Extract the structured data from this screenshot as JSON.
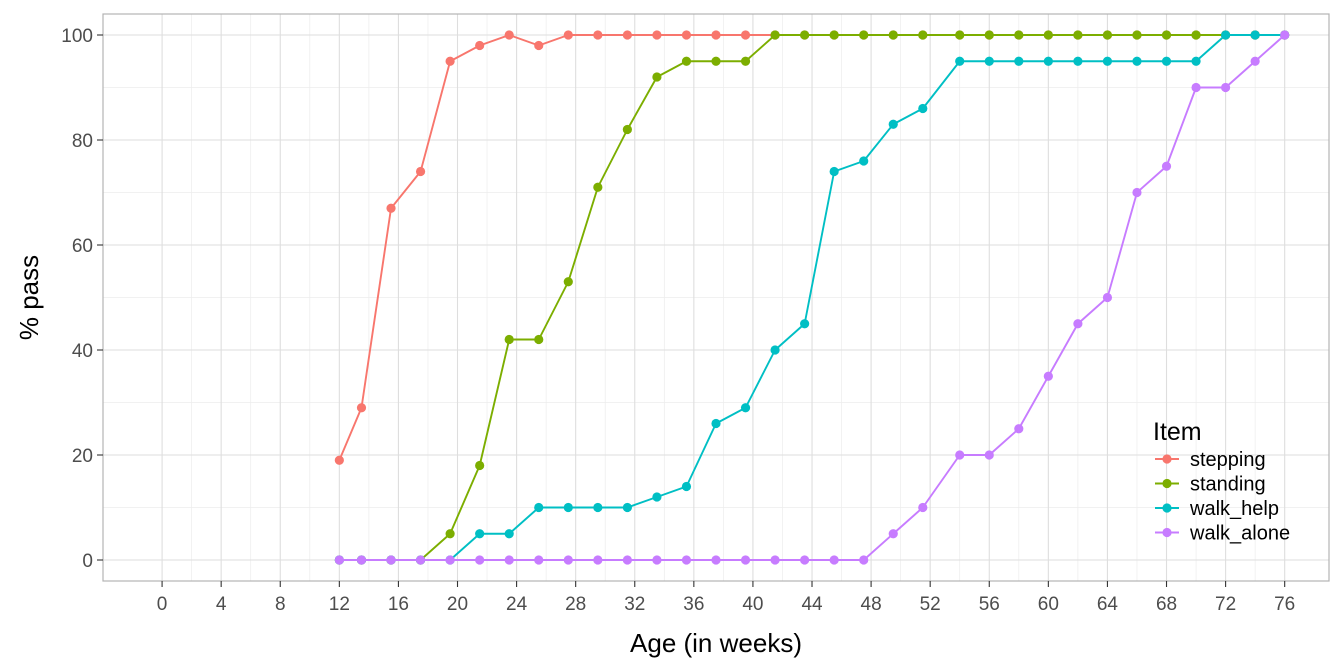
{
  "chart_data": {
    "type": "line",
    "xlabel": "Age (in weeks)",
    "ylabel": "% pass",
    "xlim": [
      -4,
      79
    ],
    "ylim": [
      -4,
      104
    ],
    "x_ticks": [
      0,
      4,
      8,
      12,
      16,
      20,
      24,
      28,
      32,
      36,
      40,
      44,
      48,
      52,
      56,
      60,
      64,
      68,
      72,
      76
    ],
    "y_ticks": [
      0,
      20,
      40,
      60,
      80,
      100
    ],
    "grid": true,
    "legend_title": "Item",
    "legend_position": "bottom-right",
    "series": [
      {
        "name": "stepping",
        "color": "#F8766D",
        "points": [
          [
            12,
            19
          ],
          [
            13.5,
            29
          ],
          [
            15.5,
            67
          ],
          [
            17.5,
            74
          ],
          [
            19.5,
            95
          ],
          [
            21.5,
            98
          ],
          [
            23.5,
            100
          ],
          [
            25.5,
            98
          ],
          [
            27.5,
            100
          ],
          [
            29.5,
            100
          ],
          [
            31.5,
            100
          ],
          [
            33.5,
            100
          ],
          [
            35.5,
            100
          ],
          [
            37.5,
            100
          ],
          [
            39.5,
            100
          ],
          [
            41.5,
            100
          ],
          [
            43.5,
            100
          ],
          [
            45.5,
            100
          ],
          [
            47.5,
            100
          ],
          [
            49.5,
            100
          ],
          [
            51.5,
            100
          ],
          [
            54,
            100
          ],
          [
            56,
            100
          ],
          [
            58,
            100
          ],
          [
            60,
            100
          ],
          [
            62,
            100
          ],
          [
            64,
            100
          ],
          [
            66,
            100
          ],
          [
            68,
            100
          ],
          [
            70,
            100
          ],
          [
            72,
            100
          ],
          [
            74,
            100
          ],
          [
            76,
            100
          ]
        ]
      },
      {
        "name": "standing",
        "color": "#7CAE00",
        "points": [
          [
            12,
            0
          ],
          [
            13.5,
            0
          ],
          [
            15.5,
            0
          ],
          [
            17.5,
            0
          ],
          [
            19.5,
            5
          ],
          [
            21.5,
            18
          ],
          [
            23.5,
            42
          ],
          [
            25.5,
            42
          ],
          [
            27.5,
            53
          ],
          [
            29.5,
            71
          ],
          [
            31.5,
            82
          ],
          [
            33.5,
            92
          ],
          [
            35.5,
            95
          ],
          [
            37.5,
            95
          ],
          [
            39.5,
            95
          ],
          [
            41.5,
            100
          ],
          [
            43.5,
            100
          ],
          [
            45.5,
            100
          ],
          [
            47.5,
            100
          ],
          [
            49.5,
            100
          ],
          [
            51.5,
            100
          ],
          [
            54,
            100
          ],
          [
            56,
            100
          ],
          [
            58,
            100
          ],
          [
            60,
            100
          ],
          [
            62,
            100
          ],
          [
            64,
            100
          ],
          [
            66,
            100
          ],
          [
            68,
            100
          ],
          [
            70,
            100
          ],
          [
            72,
            100
          ],
          [
            74,
            100
          ],
          [
            76,
            100
          ]
        ]
      },
      {
        "name": "walk_help",
        "color": "#00BFC4",
        "points": [
          [
            12,
            0
          ],
          [
            13.5,
            0
          ],
          [
            15.5,
            0
          ],
          [
            17.5,
            0
          ],
          [
            19.5,
            0
          ],
          [
            21.5,
            5
          ],
          [
            23.5,
            5
          ],
          [
            25.5,
            10
          ],
          [
            27.5,
            10
          ],
          [
            29.5,
            10
          ],
          [
            31.5,
            10
          ],
          [
            33.5,
            12
          ],
          [
            35.5,
            14
          ],
          [
            37.5,
            26
          ],
          [
            39.5,
            29
          ],
          [
            41.5,
            40
          ],
          [
            43.5,
            45
          ],
          [
            45.5,
            74
          ],
          [
            47.5,
            76
          ],
          [
            49.5,
            83
          ],
          [
            51.5,
            86
          ],
          [
            54,
            95
          ],
          [
            56,
            95
          ],
          [
            58,
            95
          ],
          [
            60,
            95
          ],
          [
            62,
            95
          ],
          [
            64,
            95
          ],
          [
            66,
            95
          ],
          [
            68,
            95
          ],
          [
            70,
            95
          ],
          [
            72,
            100
          ],
          [
            74,
            100
          ],
          [
            76,
            100
          ]
        ]
      },
      {
        "name": "walk_alone",
        "color": "#C77CFF",
        "points": [
          [
            12,
            0
          ],
          [
            13.5,
            0
          ],
          [
            15.5,
            0
          ],
          [
            17.5,
            0
          ],
          [
            19.5,
            0
          ],
          [
            21.5,
            0
          ],
          [
            23.5,
            0
          ],
          [
            25.5,
            0
          ],
          [
            27.5,
            0
          ],
          [
            29.5,
            0
          ],
          [
            31.5,
            0
          ],
          [
            33.5,
            0
          ],
          [
            35.5,
            0
          ],
          [
            37.5,
            0
          ],
          [
            39.5,
            0
          ],
          [
            41.5,
            0
          ],
          [
            43.5,
            0
          ],
          [
            45.5,
            0
          ],
          [
            47.5,
            0
          ],
          [
            49.5,
            5
          ],
          [
            51.5,
            10
          ],
          [
            54,
            20
          ],
          [
            56,
            20
          ],
          [
            58,
            25
          ],
          [
            60,
            35
          ],
          [
            62,
            45
          ],
          [
            64,
            50
          ],
          [
            66,
            70
          ],
          [
            68,
            75
          ],
          [
            70,
            90
          ],
          [
            72,
            90
          ],
          [
            74,
            95
          ],
          [
            76,
            100
          ]
        ]
      }
    ]
  }
}
